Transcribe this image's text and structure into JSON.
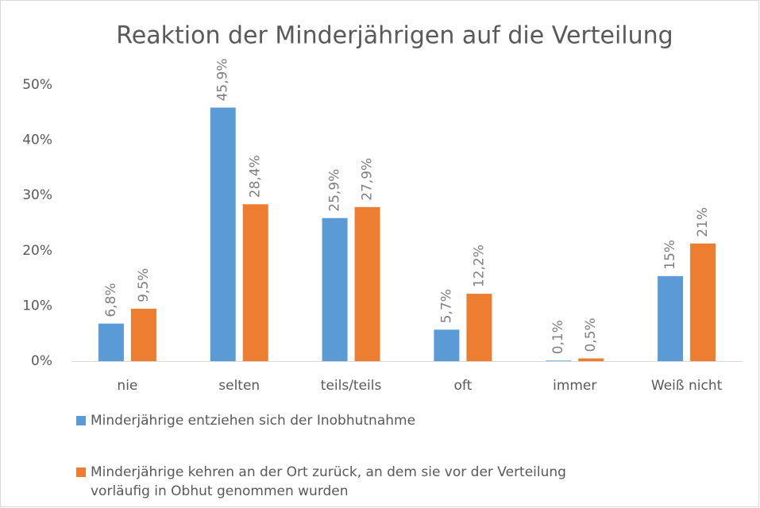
{
  "chart_data": {
    "type": "bar",
    "title": "Reaktion der Minderjährigen auf die Verteilung",
    "categories": [
      "nie",
      "selten",
      "teils/teils",
      "oft",
      "immer",
      "Weiß nicht"
    ],
    "series": [
      {
        "name": "Minderjährige entziehen sich der Inobhutnahme",
        "color": "#5b9bd5",
        "values": [
          6.8,
          45.9,
          25.9,
          5.7,
          0.1,
          15.4
        ],
        "value_labels": [
          "6,8%",
          "45,9%",
          "25,9%",
          "5,7%",
          "0,1%",
          "15%"
        ]
      },
      {
        "name": "Minderjährige kehren an der Ort zurück, an dem sie vor der Verteilung vorläufig in Obhut genommen wurden",
        "color": "#ed7d31",
        "values": [
          9.5,
          28.4,
          27.9,
          12.2,
          0.5,
          21.3
        ],
        "value_labels": [
          "9,5%",
          "28,4%",
          "27,9%",
          "12,2%",
          "0,5%",
          "21%"
        ]
      }
    ],
    "ylim": [
      0,
      50
    ],
    "yticks": [
      {
        "value": 0,
        "label": "0%"
      },
      {
        "value": 10,
        "label": "10%"
      },
      {
        "value": 20,
        "label": "20%"
      },
      {
        "value": 30,
        "label": "30%"
      },
      {
        "value": 40,
        "label": "40%"
      },
      {
        "value": 50,
        "label": "50%"
      }
    ],
    "grid": false
  }
}
